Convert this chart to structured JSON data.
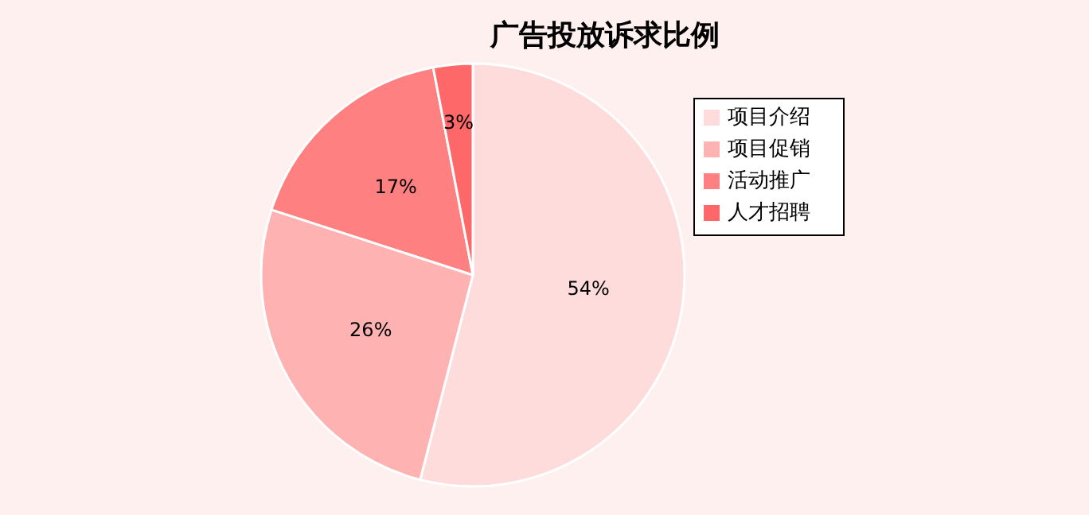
{
  "chart_data": {
    "type": "pie",
    "title": "广告投放诉求比例",
    "categories": [
      "项目介绍",
      "项目促销",
      "活动推广",
      "人才招聘"
    ],
    "values": [
      54,
      26,
      17,
      3
    ],
    "colors": [
      "#ffdcdc",
      "#ffb2b2",
      "#ff8080",
      "#ff6868"
    ],
    "value_labels": [
      "54%",
      "26%",
      "17%",
      "3%"
    ],
    "legend": "right"
  }
}
